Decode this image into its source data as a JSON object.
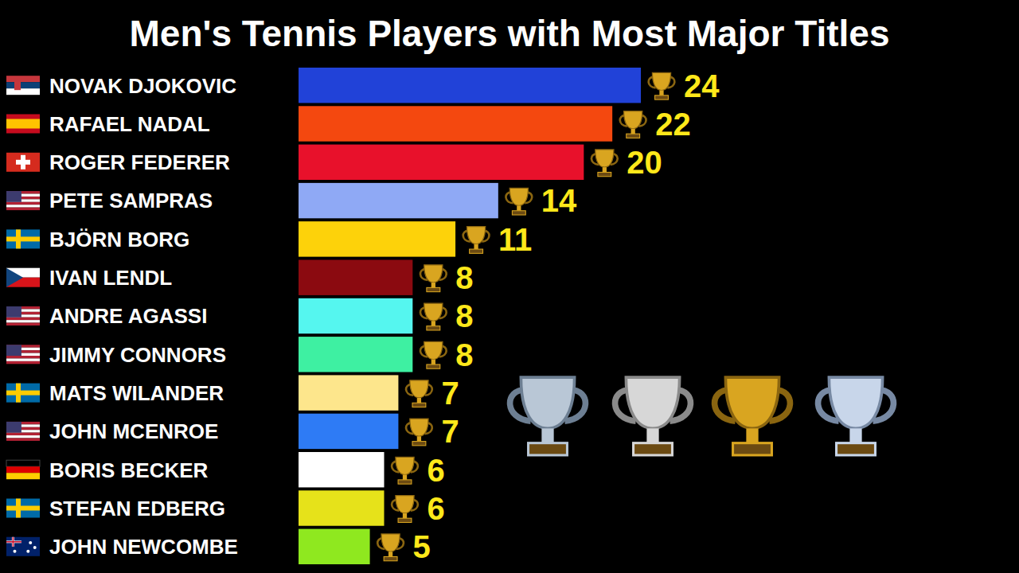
{
  "chart_data": {
    "type": "bar",
    "title": "Men's Tennis Players with Most Major Titles",
    "orientation": "horizontal",
    "categories": [
      "NOVAK DJOKOVIC",
      "RAFAEL NADAL",
      "ROGER FEDERER",
      "PETE SAMPRAS",
      "BJÖRN BORG",
      "IVAN LENDL",
      "ANDRE AGASSI",
      "JIMMY CONNORS",
      "MATS WILANDER",
      "JOHN MCENROE",
      "BORIS BECKER",
      "STEFAN EDBERG",
      "JOHN NEWCOMBE"
    ],
    "values": [
      24,
      22,
      20,
      14,
      11,
      8,
      8,
      8,
      7,
      7,
      6,
      6,
      5
    ],
    "colors": [
      "#2142d8",
      "#f4480f",
      "#e8112b",
      "#8fa9f5",
      "#fdd20a",
      "#8b0a10",
      "#55f6ef",
      "#3ef0a2",
      "#fde68c",
      "#2e7bf5",
      "#ffffff",
      "#e6e21a",
      "#8fe81f"
    ],
    "xlim": [
      0,
      24
    ],
    "data_labels": true,
    "tick_labels": false,
    "grid": false
  }
}
